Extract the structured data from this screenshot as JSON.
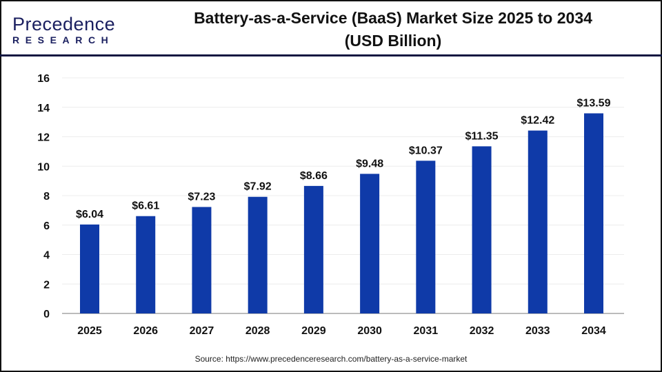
{
  "logo": {
    "line1": "Precedence",
    "line2": "RESEARCH"
  },
  "title_line1": "Battery-as-a-Service (BaaS) Market Size 2025 to 2034",
  "title_line2": "(USD Billion)",
  "source": "Source: https://www.precedenceresearch.com/battery-as-a-service-market",
  "chart_data": {
    "type": "bar",
    "categories": [
      "2025",
      "2026",
      "2027",
      "2028",
      "2029",
      "2030",
      "2031",
      "2032",
      "2033",
      "2034"
    ],
    "values": [
      6.04,
      6.61,
      7.23,
      7.92,
      8.66,
      9.48,
      10.37,
      11.35,
      12.42,
      13.59
    ],
    "data_labels": [
      "$6.04",
      "$6.61",
      "$7.23",
      "$7.92",
      "$8.66",
      "$9.48",
      "$10.37",
      "$11.35",
      "$12.42",
      "$13.59"
    ],
    "title": "Battery-as-a-Service (BaaS) Market Size 2025 to 2034 (USD Billion)",
    "xlabel": "",
    "ylabel": "",
    "ylim": [
      0,
      16
    ],
    "yticks": [
      0,
      2,
      4,
      6,
      8,
      10,
      12,
      14,
      16
    ],
    "grid": true,
    "bar_color": "#0f3aa8"
  }
}
